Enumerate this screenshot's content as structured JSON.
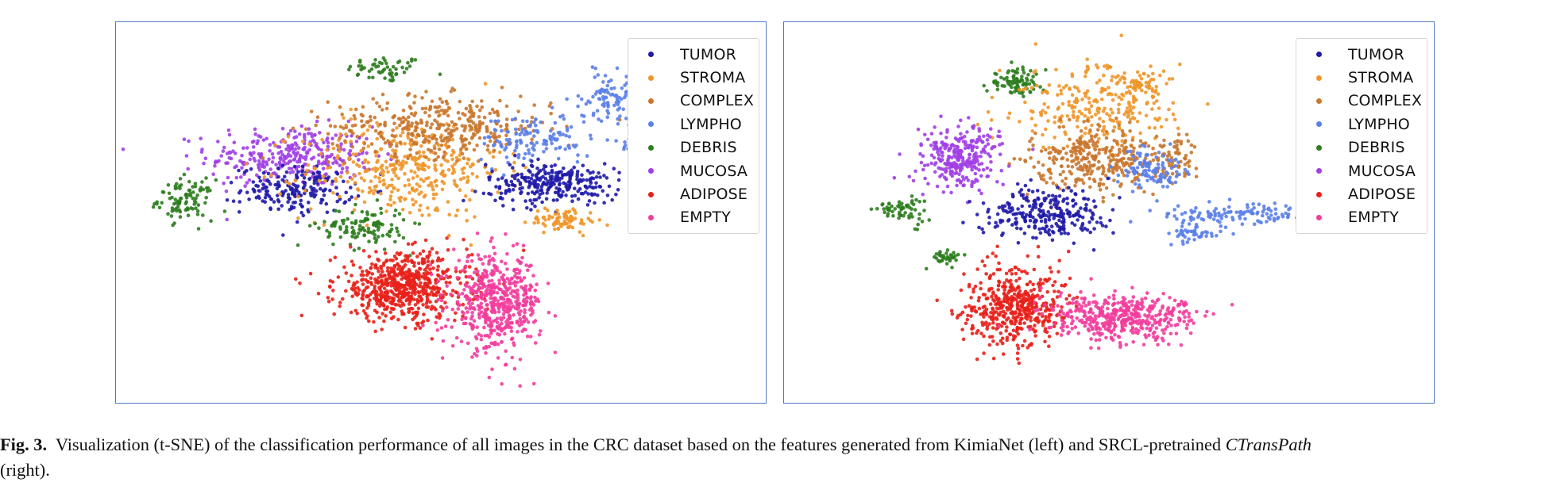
{
  "colors": {
    "TUMOR": "#1f1aa8",
    "STROMA": "#f0962a",
    "COMPLEX": "#c9772e",
    "LYMPHO": "#5b7fe8",
    "DEBRIS": "#2e7d1e",
    "MUCOSA": "#a13fe6",
    "ADIPOSE": "#e8201a",
    "EMPTY": "#f23d9c"
  },
  "chart_data": [
    {
      "type": "scatter",
      "title": "",
      "xlabel": "",
      "ylabel": "",
      "grid": false,
      "legend_position": "top-right",
      "legend": [
        "TUMOR",
        "STROMA",
        "COMPLEX",
        "LYMPHO",
        "DEBRIS",
        "MUCOSA",
        "ADIPOSE",
        "EMPTY"
      ],
      "xlim": [
        0,
        100
      ],
      "ylim": [
        0,
        100
      ],
      "clusters": [
        {
          "label": "DEBRIS",
          "cx": 40,
          "cy": 93,
          "sx": 3.5,
          "sy": 2.0,
          "n": 55
        },
        {
          "label": "MUCOSA",
          "cx": 23,
          "cy": 67,
          "sx": 7.5,
          "sy": 4.5,
          "n": 320
        },
        {
          "label": "DEBRIS",
          "cx": 4,
          "cy": 54,
          "sx": 2.5,
          "sy": 3.0,
          "n": 95
        },
        {
          "label": "TUMOR",
          "cx": 24,
          "cy": 57,
          "sx": 5.0,
          "sy": 3.5,
          "n": 190
        },
        {
          "label": "STROMA",
          "cx": 43,
          "cy": 63,
          "sx": 9.0,
          "sy": 7.5,
          "n": 380
        },
        {
          "label": "COMPLEX",
          "cx": 50,
          "cy": 76,
          "sx": 10.0,
          "sy": 4.5,
          "n": 360
        },
        {
          "label": "DEBRIS",
          "cx": 36,
          "cy": 46,
          "sx": 4.0,
          "sy": 3.0,
          "n": 120
        },
        {
          "label": "LYMPHO",
          "cx": 67,
          "cy": 72,
          "sx": 5.0,
          "sy": 4.0,
          "n": 130
        },
        {
          "label": "LYMPHO",
          "cx": 80,
          "cy": 85,
          "sx": 2.5,
          "sy": 3.5,
          "n": 90
        },
        {
          "label": "LYMPHO",
          "cx": 90,
          "cy": 68,
          "sx": 3.5,
          "sy": 3.5,
          "n": 150
        },
        {
          "label": "TUMOR",
          "cx": 70,
          "cy": 59,
          "sx": 6.0,
          "sy": 3.0,
          "n": 280
        },
        {
          "label": "STROMA",
          "cx": 72,
          "cy": 48,
          "sx": 3.0,
          "sy": 1.8,
          "n": 80
        },
        {
          "label": "ADIPOSE",
          "cx": 43,
          "cy": 28,
          "sx": 6.0,
          "sy": 5.0,
          "n": 620
        },
        {
          "label": "EMPTY",
          "cx": 60,
          "cy": 23,
          "sx": 4.0,
          "sy": 7.0,
          "n": 520
        }
      ]
    },
    {
      "type": "scatter",
      "title": "",
      "xlabel": "",
      "ylabel": "",
      "grid": false,
      "legend_position": "top-right",
      "legend": [
        "TUMOR",
        "STROMA",
        "COMPLEX",
        "LYMPHO",
        "DEBRIS",
        "MUCOSA",
        "ADIPOSE",
        "EMPTY"
      ],
      "xlim": [
        0,
        100
      ],
      "ylim": [
        0,
        100
      ],
      "clusters": [
        {
          "label": "DEBRIS",
          "cx": 33,
          "cy": 89,
          "sx": 2.5,
          "sy": 2.0,
          "n": 90
        },
        {
          "label": "STROMA",
          "cx": 47,
          "cy": 82,
          "sx": 8.0,
          "sy": 6.0,
          "n": 260
        },
        {
          "label": "STROMA",
          "cx": 56,
          "cy": 89,
          "sx": 2.0,
          "sy": 1.8,
          "n": 50
        },
        {
          "label": "COMPLEX",
          "cx": 48,
          "cy": 66,
          "sx": 6.0,
          "sy": 5.0,
          "n": 320
        },
        {
          "label": "COMPLEX",
          "cx": 62,
          "cy": 66,
          "sx": 1.8,
          "sy": 3.5,
          "n": 60
        },
        {
          "label": "LYMPHO",
          "cx": 57,
          "cy": 63,
          "sx": 3.0,
          "sy": 3.0,
          "n": 110
        },
        {
          "label": "MUCOSA",
          "cx": 23,
          "cy": 67,
          "sx": 3.5,
          "sy": 4.5,
          "n": 280
        },
        {
          "label": "DEBRIS",
          "cx": 13,
          "cy": 51,
          "sx": 2.0,
          "sy": 1.8,
          "n": 60
        },
        {
          "label": "DEBRIS",
          "cx": 20,
          "cy": 37,
          "sx": 1.5,
          "sy": 1.2,
          "n": 35
        },
        {
          "label": "TUMOR",
          "cx": 38,
          "cy": 50,
          "sx": 5.5,
          "sy": 4.0,
          "n": 260
        },
        {
          "label": "LYMPHO",
          "cx": 65,
          "cy": 44,
          "sx": 2.0,
          "sy": 1.8,
          "n": 45
        },
        {
          "label": "LYMPHO",
          "cx": 72,
          "cy": 50,
          "sx": 7.0,
          "sy": 1.8,
          "n": 120
        },
        {
          "label": "ADIPOSE",
          "cx": 33,
          "cy": 22,
          "sx": 4.5,
          "sy": 6.0,
          "n": 480
        },
        {
          "label": "EMPTY",
          "cx": 52,
          "cy": 19,
          "sx": 6.5,
          "sy": 3.5,
          "n": 430
        }
      ]
    }
  ],
  "caption": {
    "fig_label": "Fig. 3.",
    "text_main": "Visualization (t-SNE) of the classification performance of all images in the CRC dataset based on the features generated from KimiaNet (left) and SRCL-pretrained",
    "text_italic": "CTransPath",
    "text_end": "(right)."
  }
}
